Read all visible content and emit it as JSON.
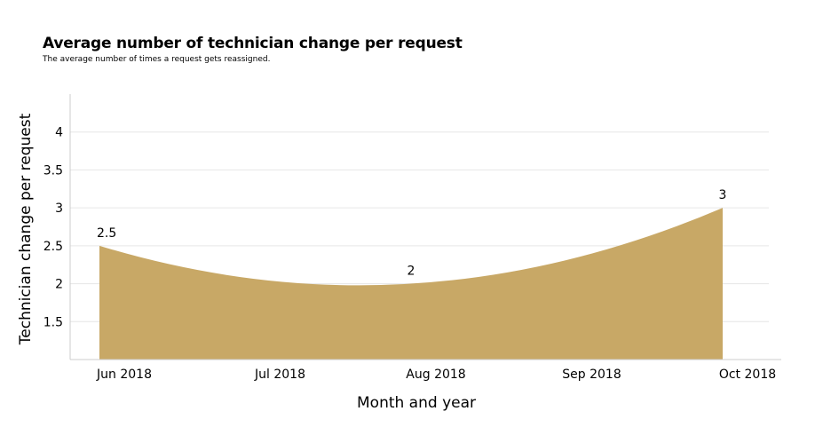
{
  "chart_data": {
    "type": "area",
    "title": "Average number of technician change per request",
    "subtitle": "The average number of times a request gets reassigned.",
    "xlabel": "Month and year",
    "ylabel": "Technician change per request",
    "categories": [
      "Jun 2018",
      "Jul 2018",
      "Aug 2018",
      "Sep 2018",
      "Oct 2018"
    ],
    "points": [
      {
        "x": "Jun 2018",
        "y": 2.5,
        "label": "2.5"
      },
      {
        "x": "Aug 2018",
        "y": 2,
        "label": "2"
      },
      {
        "x": "Oct 2018",
        "y": 3,
        "label": "3"
      }
    ],
    "yticks": [
      "1.5",
      "2",
      "2.5",
      "3",
      "3.5",
      "4"
    ],
    "ylim": [
      1,
      4.5
    ],
    "grid": true,
    "smooth": true,
    "colors": {
      "area": "#c8a866",
      "grid": "#e6e6e6",
      "axis": "#cccccc"
    }
  }
}
